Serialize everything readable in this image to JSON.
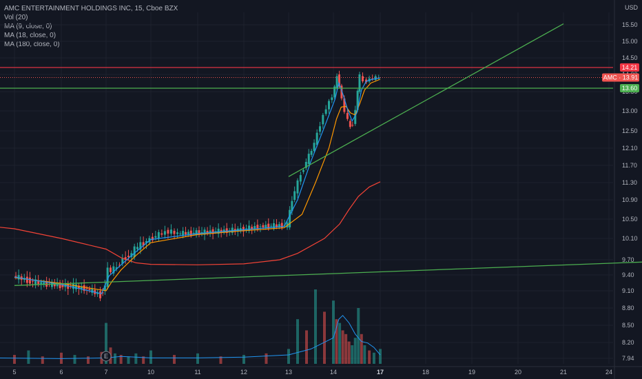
{
  "legend": {
    "title": "AMC ENTERTAINMENT HOLDINGS INC, 15, Cboe BZX",
    "items": [
      "Vol (20)",
      "MA (9, close, 0)",
      "MA (18, close, 0)",
      "MA (180, close, 0)"
    ]
  },
  "currency": "USD",
  "colors": {
    "background": "#131722",
    "grid": "#1e222d",
    "up": "#26a69a",
    "down": "#ef5350",
    "ma9": "#2196f3",
    "ma18": "#ff9800",
    "ma180": "#f44336",
    "trendline": "#4caf50",
    "resistance": "#f23645",
    "support": "#4caf50",
    "volume_ma": "#2196f3"
  },
  "chart_data": {
    "type": "candlestick",
    "symbol": "AMC",
    "interval": "15",
    "y_ticks": [
      15.5,
      15.0,
      14.5,
      14.0,
      13.5,
      13.0,
      12.5,
      12.1,
      11.7,
      11.3,
      10.9,
      10.5,
      10.1,
      9.7,
      9.4,
      9.1,
      8.8,
      8.5,
      8.2,
      7.94
    ],
    "x_ticks": [
      "5",
      "6",
      "7",
      "10",
      "11",
      "12",
      "13",
      "14",
      "17",
      "18",
      "19",
      "20",
      "21",
      "24"
    ],
    "price_labels": [
      {
        "label": "14.21",
        "value": 14.21,
        "kind": "resistance"
      },
      {
        "label": "AMC · 13.91",
        "value": 13.91,
        "kind": "last"
      },
      {
        "label": "13.60",
        "value": 13.6,
        "kind": "support"
      }
    ],
    "horizontal_lines": [
      {
        "name": "resistance",
        "value": 14.21
      },
      {
        "name": "support",
        "value": 13.6
      }
    ],
    "trendlines": [
      {
        "x1": 13.0,
        "y1": 11.44,
        "x2": 21.0,
        "y2": 15.53
      },
      {
        "x1": 5.0,
        "y1": 9.2,
        "x2": 24.2,
        "y2": 9.7
      }
    ],
    "price_series": [
      [
        5.0,
        9.38
      ],
      [
        5.3,
        9.3
      ],
      [
        5.6,
        9.24
      ],
      [
        6.0,
        9.2
      ],
      [
        6.3,
        9.18
      ],
      [
        6.6,
        9.14
      ],
      [
        6.9,
        9.02
      ],
      [
        7.0,
        9.2
      ],
      [
        7.2,
        9.52
      ],
      [
        7.4,
        9.48
      ],
      [
        7.6,
        9.52
      ],
      [
        7.8,
        9.55
      ],
      [
        8.0,
        9.65
      ],
      [
        8.4,
        9.75
      ],
      [
        8.8,
        9.8
      ],
      [
        9.0,
        9.9
      ],
      [
        9.4,
        9.98
      ],
      [
        9.8,
        10.05
      ],
      [
        10.2,
        10.18
      ],
      [
        10.4,
        10.25
      ],
      [
        10.6,
        10.2
      ],
      [
        11.0,
        10.22
      ],
      [
        11.9,
        10.28
      ],
      [
        12.4,
        10.35
      ],
      [
        13.0,
        10.38
      ],
      [
        13.1,
        10.9
      ],
      [
        13.3,
        11.5
      ],
      [
        13.6,
        12.2
      ],
      [
        13.8,
        12.9
      ],
      [
        14.0,
        13.4
      ],
      [
        14.15,
        13.6
      ],
      [
        14.3,
        13.95
      ],
      [
        14.45,
        13.7
      ],
      [
        14.6,
        13.3
      ],
      [
        14.8,
        13.0
      ],
      [
        15.0,
        12.75
      ],
      [
        15.15,
        12.6
      ],
      [
        15.3,
        12.7
      ],
      [
        15.5,
        13.0
      ],
      [
        15.6,
        13.55
      ],
      [
        15.75,
        13.95
      ],
      [
        16.0,
        13.8
      ],
      [
        16.2,
        13.82
      ],
      [
        16.4,
        13.86
      ],
      [
        16.6,
        13.89
      ],
      [
        16.8,
        13.9
      ],
      [
        17.0,
        13.91
      ]
    ],
    "ma9": [
      [
        5.0,
        9.36
      ],
      [
        6.0,
        9.22
      ],
      [
        6.9,
        9.05
      ],
      [
        7.2,
        9.38
      ],
      [
        8.0,
        9.6
      ],
      [
        9.0,
        9.85
      ],
      [
        10.0,
        10.08
      ],
      [
        11.0,
        10.2
      ],
      [
        12.0,
        10.28
      ],
      [
        12.9,
        10.35
      ],
      [
        13.2,
        10.9
      ],
      [
        13.5,
        11.8
      ],
      [
        13.8,
        12.6
      ],
      [
        14.1,
        13.3
      ],
      [
        14.35,
        13.75
      ],
      [
        14.6,
        13.45
      ],
      [
        14.9,
        13.05
      ],
      [
        15.2,
        12.75
      ],
      [
        15.5,
        12.95
      ],
      [
        15.8,
        13.55
      ],
      [
        16.1,
        13.8
      ],
      [
        16.5,
        13.86
      ],
      [
        17.0,
        13.9
      ]
    ],
    "ma18": [
      [
        5.0,
        9.35
      ],
      [
        6.0,
        9.24
      ],
      [
        7.0,
        9.1
      ],
      [
        7.4,
        9.28
      ],
      [
        8.0,
        9.5
      ],
      [
        9.0,
        9.78
      ],
      [
        10.0,
        10.02
      ],
      [
        11.0,
        10.18
      ],
      [
        12.0,
        10.26
      ],
      [
        12.9,
        10.32
      ],
      [
        13.3,
        10.6
      ],
      [
        13.6,
        11.3
      ],
      [
        13.9,
        12.1
      ],
      [
        14.2,
        12.8
      ],
      [
        14.5,
        13.1
      ],
      [
        14.8,
        13.12
      ],
      [
        15.1,
        12.95
      ],
      [
        15.4,
        12.9
      ],
      [
        15.7,
        13.2
      ],
      [
        16.0,
        13.55
      ],
      [
        16.4,
        13.75
      ],
      [
        17.0,
        13.86
      ]
    ],
    "ma180": [
      [
        4.5,
        10.35
      ],
      [
        5.0,
        10.3
      ],
      [
        6.0,
        10.1
      ],
      [
        7.0,
        9.9
      ],
      [
        8.0,
        9.74
      ],
      [
        9.0,
        9.64
      ],
      [
        10.0,
        9.61
      ],
      [
        11.0,
        9.6
      ],
      [
        12.0,
        9.62
      ],
      [
        12.8,
        9.7
      ],
      [
        13.2,
        9.82
      ],
      [
        13.8,
        10.1
      ],
      [
        14.4,
        10.4
      ],
      [
        15.0,
        10.7
      ],
      [
        15.6,
        10.98
      ],
      [
        16.3,
        11.2
      ],
      [
        17.0,
        11.32
      ]
    ],
    "volume_bars": [
      [
        5.0,
        0.12,
        "down"
      ],
      [
        5.3,
        0.18,
        "up"
      ],
      [
        5.6,
        0.1,
        "down"
      ],
      [
        6.0,
        0.15,
        "down"
      ],
      [
        6.3,
        0.12,
        "up"
      ],
      [
        6.6,
        0.1,
        "down"
      ],
      [
        6.9,
        0.16,
        "down"
      ],
      [
        7.0,
        0.55,
        "up"
      ],
      [
        7.3,
        0.22,
        "down"
      ],
      [
        7.6,
        0.14,
        "up"
      ],
      [
        8.0,
        0.12,
        "down"
      ],
      [
        8.5,
        0.1,
        "up"
      ],
      [
        9.0,
        0.14,
        "up"
      ],
      [
        9.5,
        0.1,
        "down"
      ],
      [
        10.0,
        0.18,
        "up"
      ],
      [
        10.5,
        0.12,
        "down"
      ],
      [
        11.0,
        0.14,
        "up"
      ],
      [
        11.5,
        0.1,
        "down"
      ],
      [
        12.0,
        0.12,
        "up"
      ],
      [
        12.5,
        0.14,
        "down"
      ],
      [
        13.0,
        0.2,
        "up"
      ],
      [
        13.2,
        0.6,
        "up"
      ],
      [
        13.4,
        0.45,
        "down"
      ],
      [
        13.6,
        1.0,
        "up"
      ],
      [
        13.8,
        0.7,
        "down"
      ],
      [
        14.0,
        0.85,
        "up"
      ],
      [
        14.2,
        0.6,
        "down"
      ],
      [
        14.4,
        0.55,
        "up"
      ],
      [
        14.6,
        0.45,
        "down"
      ],
      [
        14.8,
        0.4,
        "down"
      ],
      [
        15.0,
        0.3,
        "down"
      ],
      [
        15.2,
        0.25,
        "up"
      ],
      [
        15.4,
        0.35,
        "up"
      ],
      [
        15.6,
        0.75,
        "up"
      ],
      [
        15.8,
        0.4,
        "down"
      ],
      [
        16.0,
        0.25,
        "up"
      ],
      [
        16.3,
        0.18,
        "down"
      ],
      [
        16.6,
        0.15,
        "up"
      ],
      [
        17.0,
        0.2,
        "up"
      ]
    ],
    "volume_ma": [
      [
        4.5,
        0.08
      ],
      [
        6.0,
        0.07
      ],
      [
        7.0,
        0.08
      ],
      [
        8.0,
        0.1
      ],
      [
        9.0,
        0.09
      ],
      [
        10.0,
        0.08
      ],
      [
        11.0,
        0.08
      ],
      [
        12.0,
        0.09
      ],
      [
        13.0,
        0.12
      ],
      [
        13.5,
        0.2
      ],
      [
        14.0,
        0.35
      ],
      [
        14.35,
        0.6
      ],
      [
        14.6,
        0.65
      ],
      [
        15.0,
        0.55
      ],
      [
        15.4,
        0.4
      ],
      [
        15.8,
        0.3
      ],
      [
        16.2,
        0.28
      ],
      [
        16.6,
        0.22
      ],
      [
        17.0,
        0.12
      ]
    ]
  }
}
